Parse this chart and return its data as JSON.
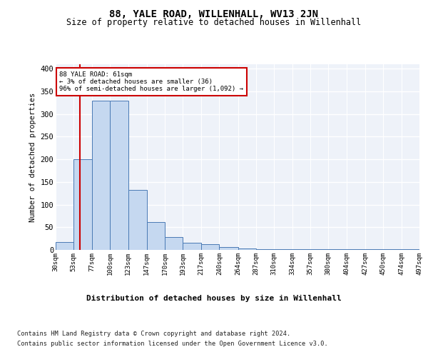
{
  "title": "88, YALE ROAD, WILLENHALL, WV13 2JN",
  "subtitle": "Size of property relative to detached houses in Willenhall",
  "xlabel": "Distribution of detached houses by size in Willenhall",
  "ylabel": "Number of detached properties",
  "bin_edges": [
    30,
    53,
    77,
    100,
    123,
    147,
    170,
    193,
    217,
    240,
    264,
    287,
    310,
    334,
    357,
    380,
    404,
    427,
    450,
    474,
    497
  ],
  "bar_heights": [
    18,
    200,
    330,
    330,
    133,
    62,
    28,
    15,
    13,
    7,
    3,
    2,
    1,
    1,
    1,
    1,
    1,
    1,
    1,
    1
  ],
  "bar_color": "#c5d8f0",
  "bar_edge_color": "#4a7ab5",
  "property_line_x": 61,
  "property_line_color": "#cc0000",
  "annotation_text": "88 YALE ROAD: 61sqm\n← 3% of detached houses are smaller (36)\n96% of semi-detached houses are larger (1,092) →",
  "annotation_box_color": "#cc0000",
  "annotation_text_color": "#000000",
  "ylim": [
    0,
    410
  ],
  "yticks": [
    0,
    50,
    100,
    150,
    200,
    250,
    300,
    350,
    400
  ],
  "background_color": "#eef2f9",
  "footer_line1": "Contains HM Land Registry data © Crown copyright and database right 2024.",
  "footer_line2": "Contains public sector information licensed under the Open Government Licence v3.0."
}
